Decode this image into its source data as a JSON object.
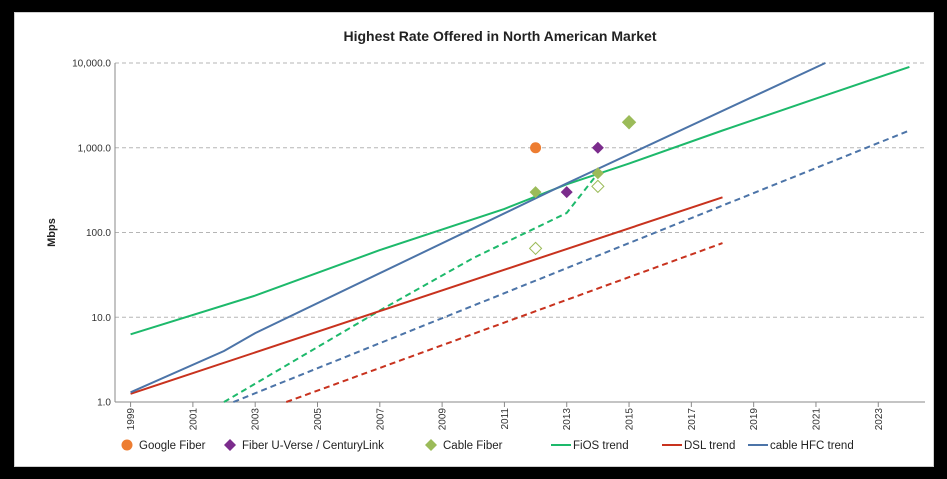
{
  "chart_data": {
    "type": "scatter",
    "title": "Highest Rate Offered in North American Market",
    "xlabel": "",
    "ylabel": "Mbps",
    "xlim": [
      1998.5,
      2024.5
    ],
    "ylim": [
      1,
      10000
    ],
    "y_scale": "log",
    "grid": true,
    "legend_position": "bottom",
    "x_ticks": [
      "1999",
      "2001",
      "2003",
      "2005",
      "2007",
      "2009",
      "2011",
      "2013",
      "2015",
      "2017",
      "2019",
      "2021",
      "2023"
    ],
    "y_ticks": [
      "1.0",
      "10.0",
      "100.0",
      "1,000.0",
      "10,000.0"
    ],
    "series": [
      {
        "name": "Google Fiber",
        "kind": "marker",
        "marker": "circle",
        "color": "#ED7D31",
        "points": [
          [
            2012,
            1000
          ]
        ]
      },
      {
        "name": "Fiber U-Verse / CenturyLink",
        "kind": "marker",
        "marker": "diamond",
        "color": "#7B2C8C",
        "points": [
          [
            2013,
            300
          ],
          [
            2014,
            1000
          ]
        ]
      },
      {
        "name": "Cable Fiber",
        "kind": "marker",
        "marker": "diamond",
        "color": "#9BBB59",
        "points": [
          [
            2012,
            300
          ],
          [
            2014,
            500
          ],
          [
            2015,
            2000
          ]
        ]
      },
      {
        "name": "",
        "kind": "marker",
        "marker": "diamond-open",
        "color": "#9BBB59",
        "points": [
          [
            2012,
            65
          ],
          [
            2014,
            350
          ]
        ]
      },
      {
        "name": "FiOS trend",
        "kind": "line",
        "style": "solid",
        "color": "#1DB96B",
        "points": [
          [
            1999,
            6.3
          ],
          [
            2003,
            18
          ],
          [
            2007,
            62
          ],
          [
            2011,
            190
          ],
          [
            2013,
            370
          ],
          [
            2015,
            650
          ],
          [
            2018,
            1600
          ],
          [
            2021,
            3800
          ],
          [
            2024,
            9000
          ]
        ]
      },
      {
        "name": "",
        "kind": "line",
        "style": "dashed",
        "color": "#1DB96B",
        "points": [
          [
            2002,
            1
          ],
          [
            2007,
            12
          ],
          [
            2010,
            50
          ],
          [
            2013,
            170
          ],
          [
            2014,
            500
          ]
        ]
      },
      {
        "name": "DSL trend",
        "kind": "line",
        "style": "solid",
        "color": "#C8321E",
        "points": [
          [
            1999,
            1.25
          ],
          [
            2018,
            260
          ]
        ]
      },
      {
        "name": "",
        "kind": "line",
        "style": "dashed",
        "color": "#C8321E",
        "points": [
          [
            2004,
            1
          ],
          [
            2018,
            75
          ]
        ]
      },
      {
        "name": "cable HFC trend",
        "kind": "line",
        "style": "solid",
        "color": "#4C74A8",
        "points": [
          [
            1999,
            1.3
          ],
          [
            2002,
            4
          ],
          [
            2003,
            6.5
          ],
          [
            2013,
            380
          ],
          [
            2021.3,
            10000
          ]
        ]
      },
      {
        "name": "",
        "kind": "line",
        "style": "dashed",
        "color": "#4C74A8",
        "points": [
          [
            2002.3,
            1
          ],
          [
            2024,
            1600
          ]
        ]
      }
    ]
  }
}
